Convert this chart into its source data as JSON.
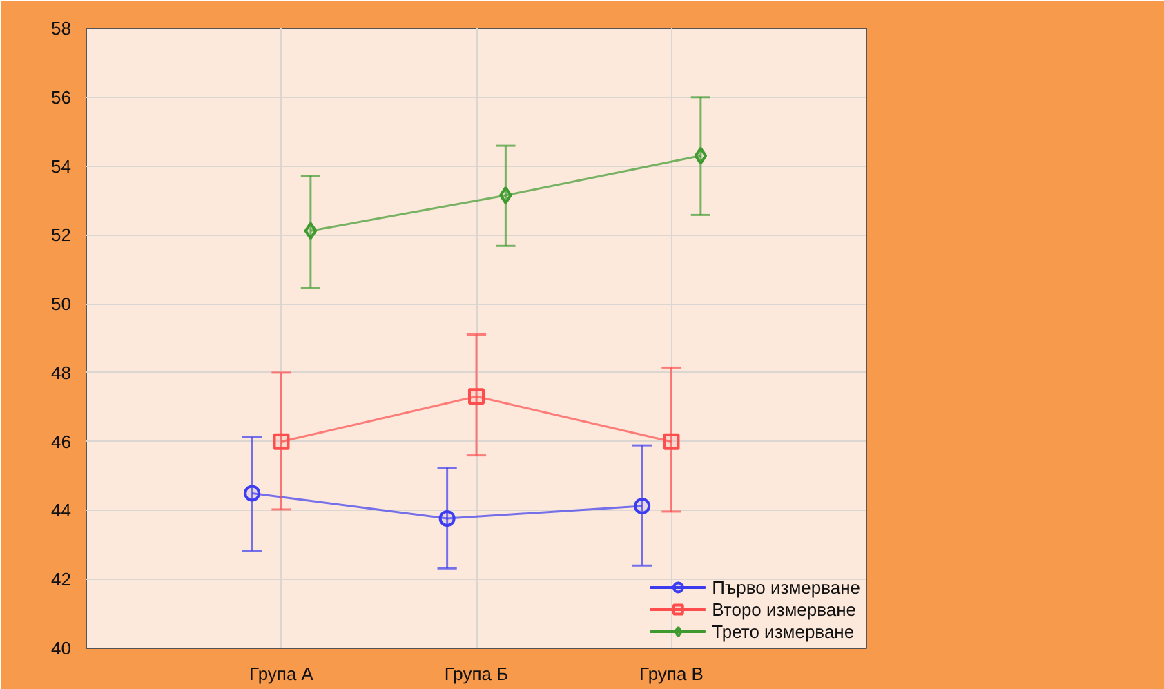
{
  "chart_data": {
    "type": "line",
    "categories": [
      "Група А",
      "Група Б",
      "Група В"
    ],
    "series": [
      {
        "name": "Първо измерване",
        "color": "#3c3cf0",
        "marker": "circle",
        "values": [
          44.5,
          43.77,
          44.13
        ],
        "errors": [
          [
            42.83,
            46.13
          ],
          [
            42.32,
            45.24
          ],
          [
            42.4,
            45.89
          ]
        ]
      },
      {
        "name": "Второ измерване",
        "color": "#ff4d4d",
        "marker": "square",
        "values": [
          46.0,
          47.31,
          46.0
        ],
        "errors": [
          [
            44.03,
            48.0
          ],
          [
            45.6,
            49.11
          ],
          [
            43.97,
            48.15
          ]
        ]
      },
      {
        "name": "Трето измерване",
        "color": "#3f9a2f",
        "marker": "diamond",
        "values": [
          52.12,
          53.15,
          54.3
        ],
        "errors": [
          [
            50.47,
            53.72
          ],
          [
            51.68,
            54.59
          ],
          [
            52.58,
            56.0
          ]
        ]
      }
    ],
    "ylim": [
      40,
      58
    ],
    "yticks": [
      40,
      42,
      44,
      46,
      48,
      50,
      52,
      54,
      56,
      58
    ],
    "grid": true,
    "legend": "bottom right"
  }
}
